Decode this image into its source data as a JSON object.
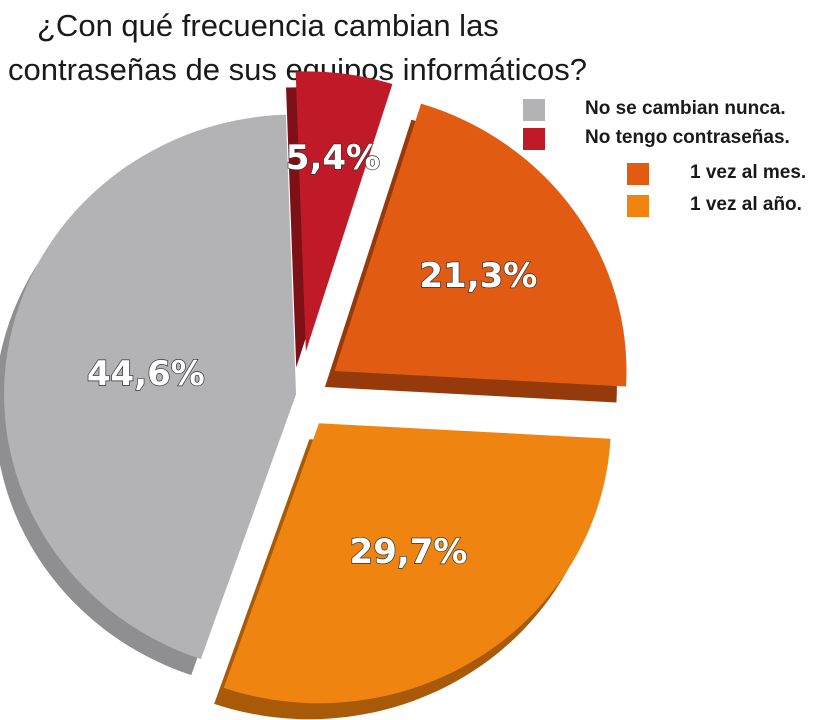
{
  "chart_data": {
    "type": "pie",
    "title": "¿Con qué frecuencia cambian las contraseñas de sus equipos informáticos?",
    "title_lines": [
      "¿Con qué frecuencia cambian las",
      "contraseñas de sus equipos informáticos?"
    ],
    "legend_placement": "top-right",
    "categories": [
      "No se cambian nunca.",
      "No tengo contraseñas.",
      "1 vez al mes.",
      "1 vez al año."
    ],
    "values": [
      44.6,
      5.4,
      21.3,
      29.7
    ],
    "value_labels": [
      "44,6%",
      "5,4%",
      "21,3%",
      "29,7%"
    ],
    "colors": [
      "#b3b2b4",
      "#c01a28",
      "#e25b12",
      "#ef8510"
    ],
    "side_colors": [
      "#8f8e90",
      "#7e1018",
      "#963a0b",
      "#a85a08"
    ]
  }
}
